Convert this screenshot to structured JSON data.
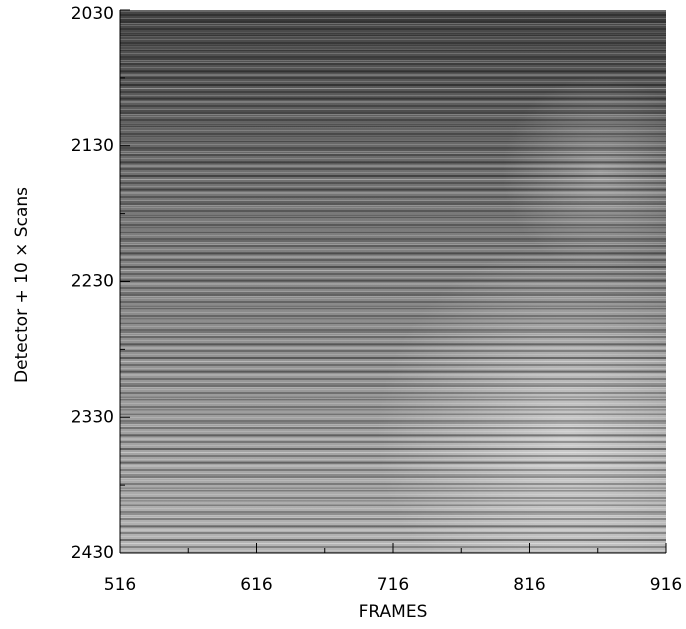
{
  "chart_data": {
    "type": "image",
    "x_label": "FRAMES",
    "y_label": "Detector + 10 × Scans",
    "xlim": [
      516,
      916
    ],
    "ylim": [
      2030,
      2430
    ],
    "xticks": [
      516,
      616,
      716,
      816,
      916
    ],
    "yticks": [
      2030,
      2130,
      2230,
      2330,
      2430
    ],
    "xminorticks": [
      566,
      666,
      766,
      866
    ],
    "yminorticks": [
      2080,
      2180,
      2280,
      2380
    ],
    "y_inverted": true
  }
}
